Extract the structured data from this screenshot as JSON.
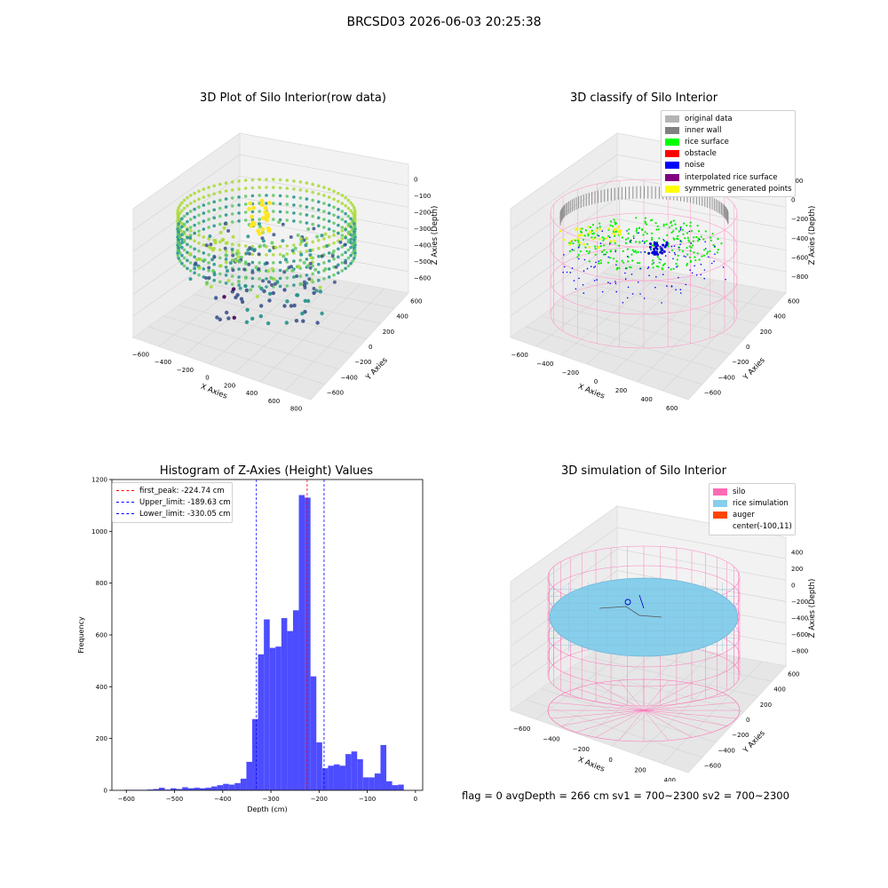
{
  "figure": {
    "title": "BRCSD03 2026-06-03 20:25:38",
    "footer": "flag = 0     avgDepth = 266 cm  sv1 = 700~2300  sv2 = 700~2300"
  },
  "colors": {
    "histogram_bar": "#4d4dff",
    "peak_line": "#ff0000",
    "limit_line": "#0000ff",
    "silo": "#ff69b4",
    "rice_simulation": "#87ceeb",
    "auger": "#ff4500",
    "viridis_low": "#440154",
    "viridis_mid": "#21918c",
    "viridis_high": "#fde725"
  },
  "panels": {
    "p1": {
      "title": "3D Plot of Silo Interior(row data)",
      "xlabel": "X Axies",
      "ylabel": "Y Axies",
      "zlabel": "Z Axies (Depth)",
      "xticks": [
        "−600",
        "−400",
        "−200",
        "0",
        "200",
        "400",
        "600",
        "800"
      ],
      "yticks": [
        "−600",
        "−400",
        "−200",
        "0",
        "200",
        "400",
        "600"
      ],
      "zticks": [
        "0",
        "−100",
        "−200",
        "−300",
        "−400",
        "−500",
        "−600"
      ]
    },
    "p2": {
      "title": "3D classify of Silo Interior",
      "xlabel": "X Axies",
      "ylabel": "Y Axies",
      "zlabel": "Z Axies (Depth)",
      "xticks": [
        "−600",
        "−400",
        "−200",
        "0",
        "200",
        "400",
        "600"
      ],
      "yticks": [
        "−600",
        "−400",
        "−200",
        "0",
        "200",
        "400",
        "600"
      ],
      "zticks": [
        "200",
        "0",
        "−200",
        "−400",
        "−600",
        "−800"
      ],
      "legend": [
        {
          "label": "original data",
          "color": "#b4b4b4"
        },
        {
          "label": "inner wall",
          "color": "#808080"
        },
        {
          "label": "rice surface",
          "color": "#00ff00"
        },
        {
          "label": "obstacle",
          "color": "#ff0000"
        },
        {
          "label": "noise",
          "color": "#0000ff"
        },
        {
          "label": "interpolated rice surface",
          "color": "#800080"
        },
        {
          "label": "symmetric generated points",
          "color": "#ffff00"
        }
      ]
    },
    "p4": {
      "title": "3D simulation of Silo Interior",
      "xlabel": "X Axies",
      "ylabel": "Y Axies",
      "zlabel": "Z Axies (Depth)",
      "xticks": [
        "−600",
        "−400",
        "−200",
        "0",
        "200",
        "400"
      ],
      "yticks": [
        "−600",
        "−400",
        "−200",
        "0",
        "200",
        "400",
        "600"
      ],
      "zticks": [
        "400",
        "200",
        "0",
        "−200",
        "−400",
        "−600",
        "−800"
      ],
      "legend": [
        {
          "label": "silo",
          "color": "#ff69b4"
        },
        {
          "label": "rice simulation",
          "color": "#87ceeb"
        },
        {
          "label": "auger",
          "color": "#ff4500"
        },
        {
          "label": "center(-100,11)",
          "color": ""
        }
      ]
    }
  },
  "chart_data": {
    "type": "bar",
    "title": "Histogram of Z-Axies (Height) Values",
    "xlabel": "Depth (cm)",
    "ylabel": "Frequency",
    "xlim": [
      -630,
      15
    ],
    "ylim": [
      0,
      1200
    ],
    "xticks": [
      -600,
      -500,
      -400,
      -300,
      -200,
      -100,
      0
    ],
    "yticks": [
      0,
      200,
      400,
      600,
      800,
      1000,
      1200
    ],
    "bin_start": -605,
    "bin_width": 12.1,
    "values": [
      2,
      2,
      2,
      2,
      3,
      5,
      10,
      3,
      8,
      5,
      12,
      8,
      10,
      8,
      10,
      15,
      20,
      25,
      22,
      28,
      45,
      110,
      275,
      525,
      660,
      550,
      555,
      665,
      615,
      695,
      1140,
      1130,
      440,
      185,
      85,
      95,
      100,
      95,
      140,
      150,
      120,
      50,
      50,
      65,
      175,
      35,
      20,
      22
    ],
    "lines": [
      {
        "label": "first_peak: -224.74 cm",
        "x": -224.74,
        "color": "#ff0000"
      },
      {
        "label": "Upper_limit: -189.63 cm",
        "x": -189.63,
        "color": "#0000ff"
      },
      {
        "label": "Lower_limit: -330.05 cm",
        "x": -330.05,
        "color": "#0000ff"
      }
    ],
    "grid": false,
    "legend_position": "top-left"
  }
}
